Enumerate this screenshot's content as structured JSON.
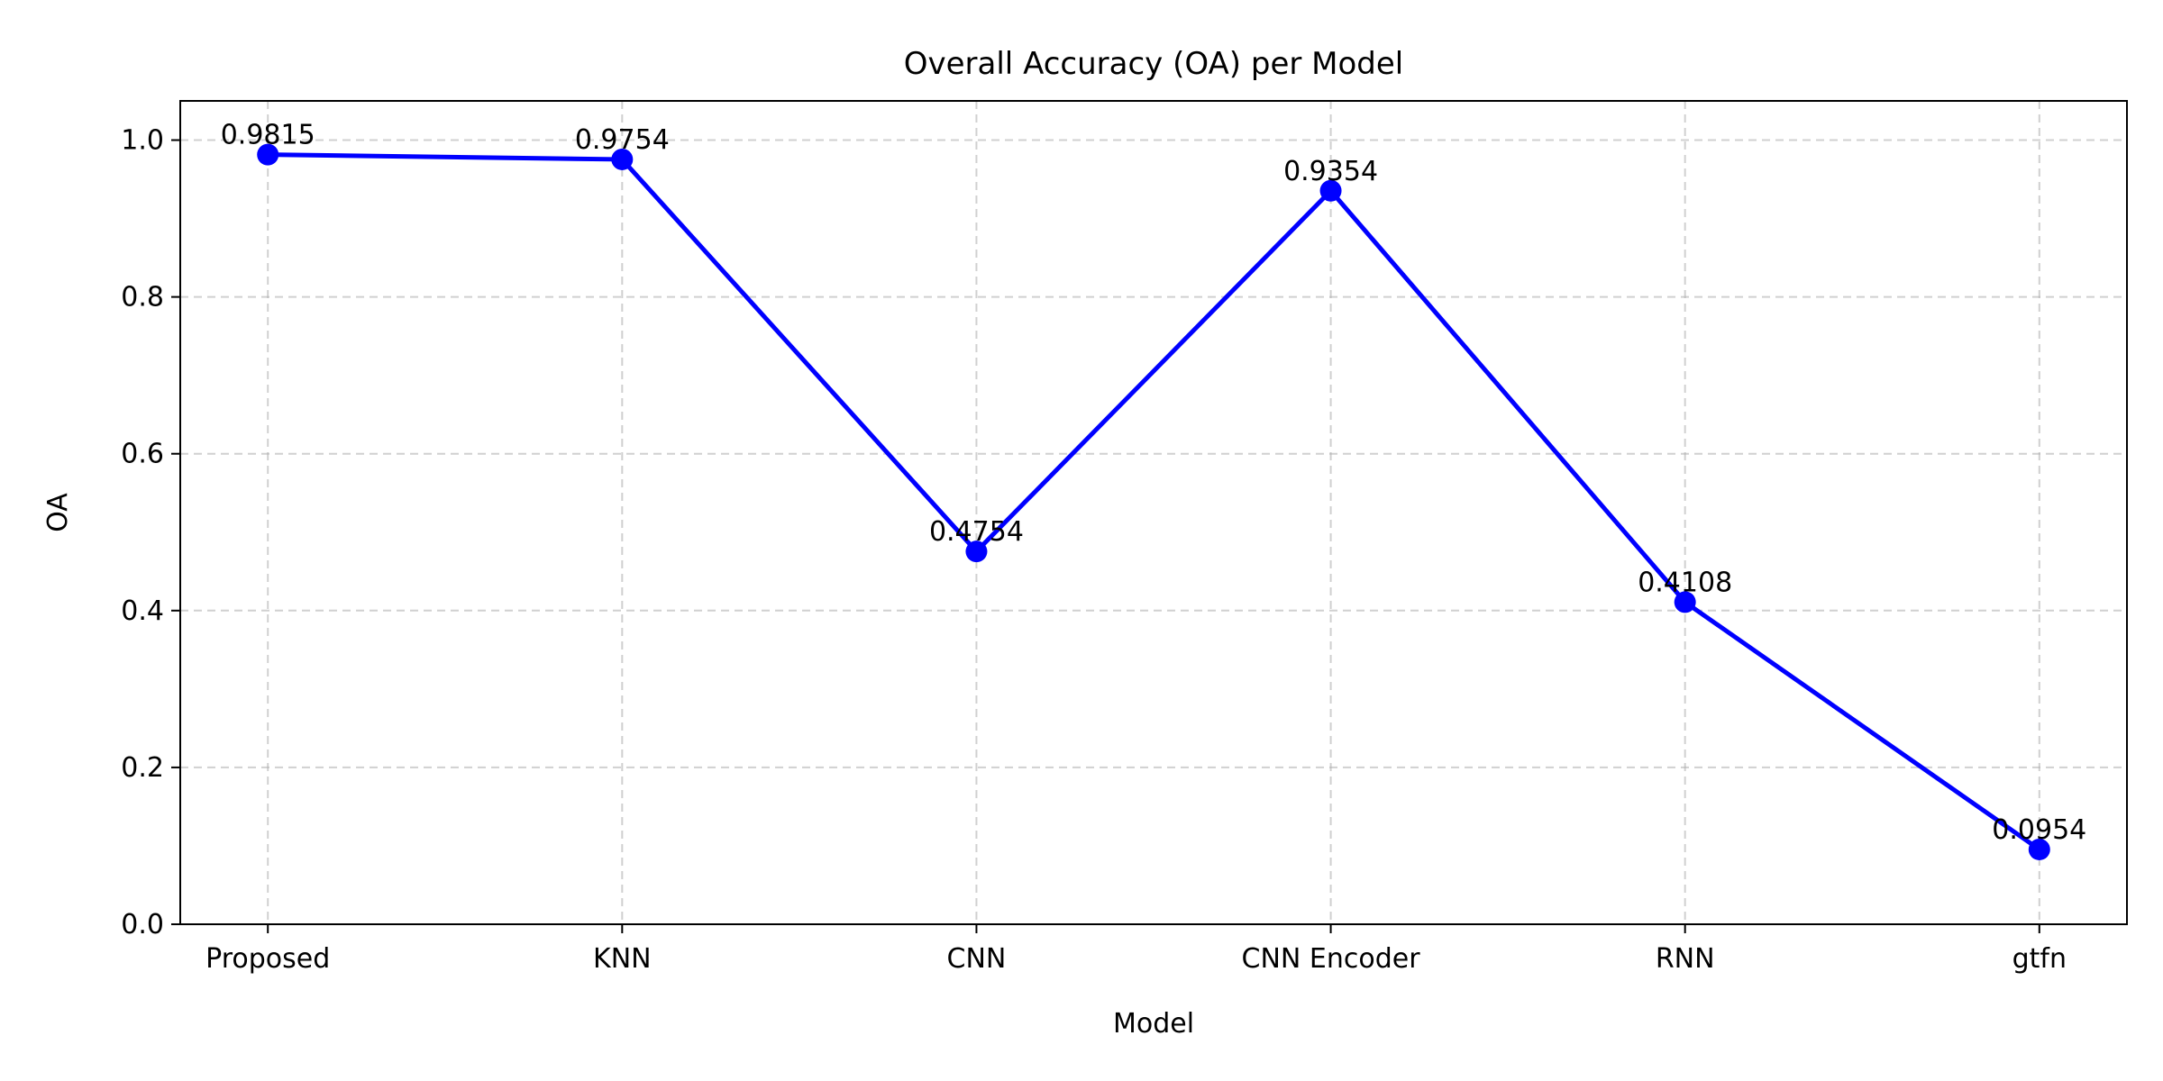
{
  "chart_data": {
    "type": "line",
    "title": "Overall Accuracy (OA) per Model",
    "xlabel": "Model",
    "ylabel": "OA",
    "categories": [
      "Proposed",
      "KNN",
      "CNN",
      "CNN Encoder",
      "RNN",
      "gtfn"
    ],
    "series": [
      {
        "values": [
          0.9815,
          0.9754,
          0.4754,
          0.9354,
          0.4108,
          0.0954
        ],
        "labels": [
          "0.9815",
          "0.9754",
          "0.4754",
          "0.9354",
          "0.4108",
          "0.0954"
        ],
        "color": "#0000ff",
        "marker": "circle"
      }
    ],
    "ylim": [
      0,
      1.05
    ],
    "yticks": [
      0.0,
      0.2,
      0.4,
      0.6,
      0.8,
      1.0
    ],
    "ytick_labels": [
      "0.0",
      "0.2",
      "0.4",
      "0.6",
      "0.8",
      "1.0"
    ],
    "grid": true,
    "grid_style": "dashed"
  }
}
